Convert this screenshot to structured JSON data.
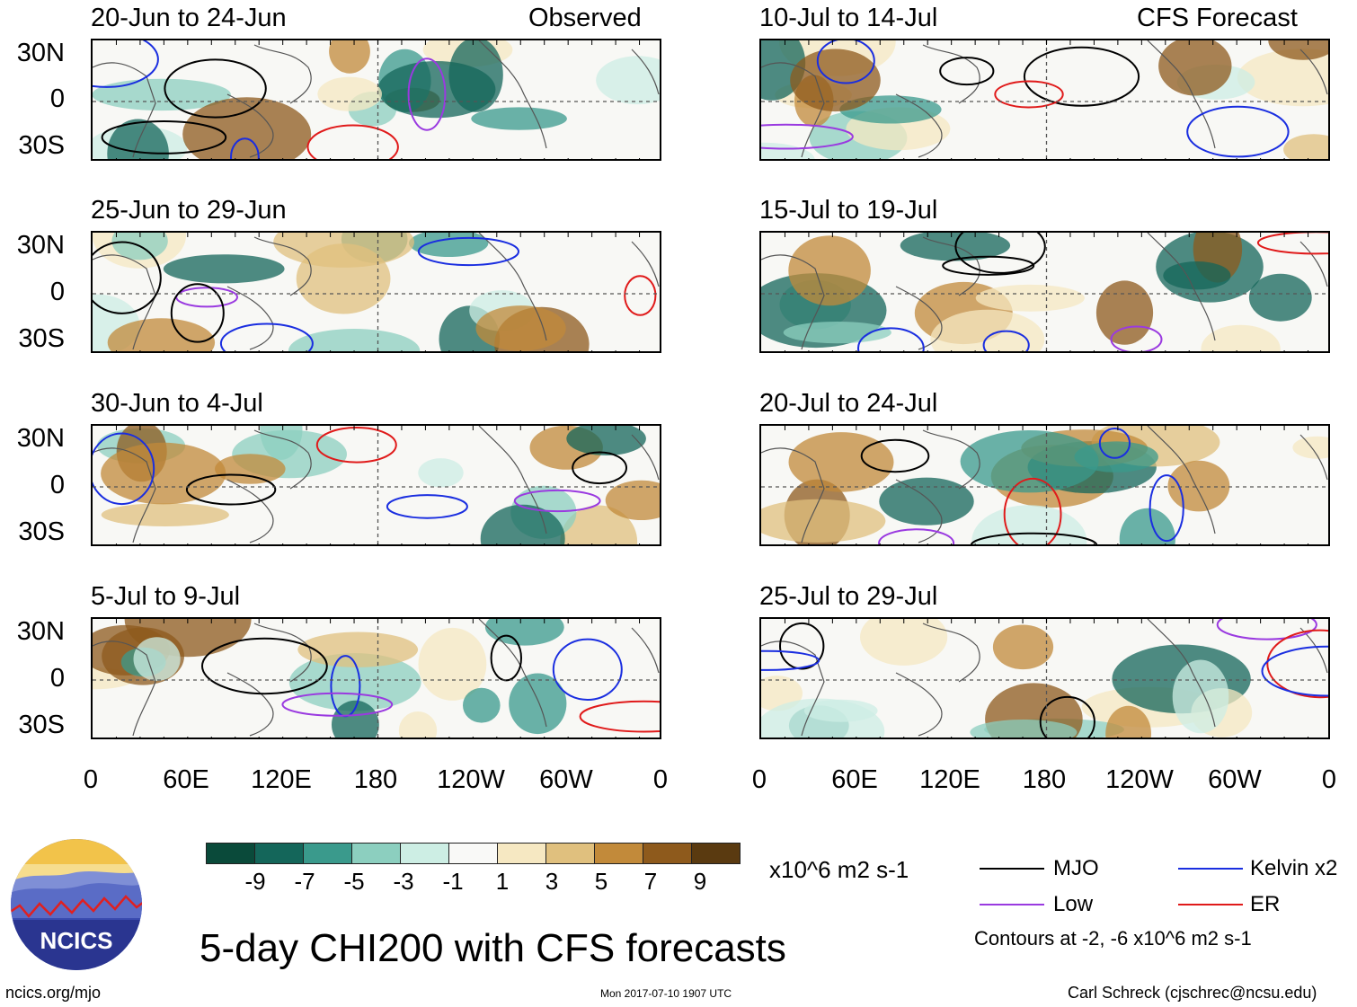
{
  "panels_left": [
    {
      "title": "20-Jun to 24-Jun",
      "label": "Observed"
    },
    {
      "title": "25-Jun to 29-Jun",
      "label": ""
    },
    {
      "title": "30-Jun to 4-Jul",
      "label": ""
    },
    {
      "title": "5-Jul to 9-Jul",
      "label": ""
    }
  ],
  "panels_right": [
    {
      "title": "10-Jul to 14-Jul",
      "label": "CFS Forecast"
    },
    {
      "title": "15-Jul to 19-Jul",
      "label": ""
    },
    {
      "title": "20-Jul to 24-Jul",
      "label": ""
    },
    {
      "title": "25-Jul to 29-Jul",
      "label": ""
    }
  ],
  "lat_labels": [
    "30N",
    "0",
    "30S"
  ],
  "lon_labels": [
    "0",
    "60E",
    "120E",
    "180",
    "120W",
    "60W",
    "0"
  ],
  "colorbar": {
    "colors": [
      "#0a4a3a",
      "#14665a",
      "#3a9a8c",
      "#8ccfbf",
      "#cdeee4",
      "#f9f9f7",
      "#f6e8c2",
      "#e0c07e",
      "#c28a3a",
      "#8e5a1c",
      "#5a3a10"
    ],
    "ticks": [
      "-9",
      "-7",
      "-5",
      "-3",
      "-1",
      "1",
      "3",
      "5",
      "7",
      "9"
    ],
    "units": "x10^6 m2 s-1"
  },
  "legend": {
    "mjo": {
      "label": "MJO",
      "color": "#000000"
    },
    "kelvin": {
      "label": "Kelvin x2",
      "color": "#1a2ee0"
    },
    "low": {
      "label": "Low",
      "color": "#9a3ae0"
    },
    "er": {
      "label": "ER",
      "color": "#e01a1a"
    },
    "contours_note": "Contours at -2, -6 x10^6 m2 s-1"
  },
  "logo_text": "NCICS",
  "main_title": "5-day CHI200 with CFS forecasts",
  "footer": {
    "left": "ncics.org/mjo",
    "center": "Mon 2017-07-10 1907 UTC",
    "right": "Carl Schreck (cjschrec@ncsu.edu)"
  }
}
